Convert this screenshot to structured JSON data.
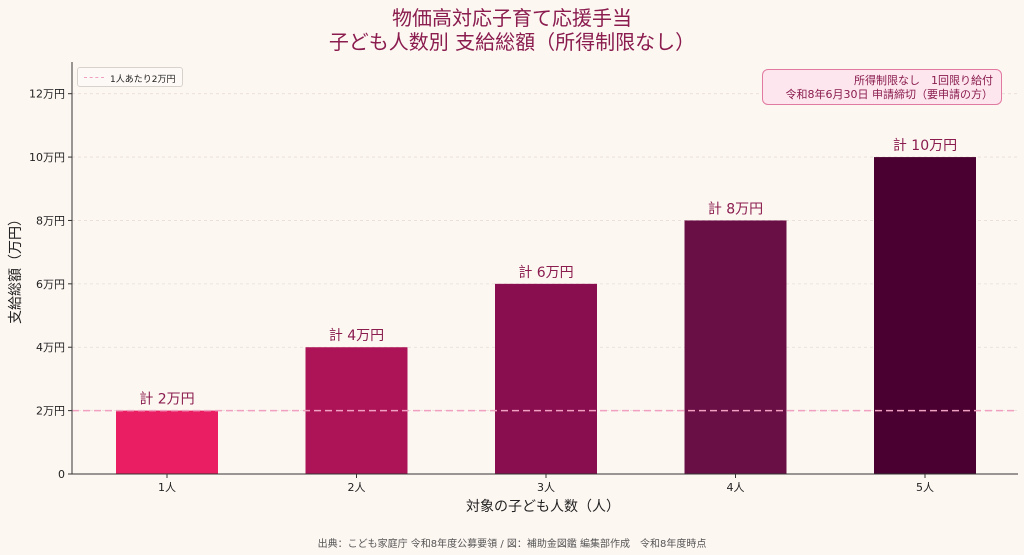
{
  "chart_data": {
    "type": "bar",
    "title": "物価高対応子育て応援手当",
    "subtitle": "子ども人数別 支給総額（所得制限なし）",
    "xlabel": "対象の子ども人数（人）",
    "ylabel": "支給総額（万円）",
    "categories": [
      "1人",
      "2人",
      "3人",
      "4人",
      "5人"
    ],
    "values": [
      2,
      4,
      6,
      8,
      10
    ],
    "data_labels": [
      "計 2万円",
      "計 4万円",
      "計 6万円",
      "計 8万円",
      "計 10万円"
    ],
    "bar_colors": [
      "#e91e63",
      "#ad1457",
      "#880e4f",
      "#6a0f45",
      "#4a0030"
    ],
    "ylim": [
      0,
      13
    ],
    "yticks": [
      0,
      2,
      4,
      6,
      8,
      10,
      12
    ],
    "ytick_labels": [
      "0",
      "2万円",
      "4万円",
      "6万円",
      "8万円",
      "10万円",
      "12万円"
    ],
    "grid": "horizontal",
    "reference_line": {
      "value": 2,
      "label": "1人あたり2万円",
      "color": "#f0a0c0",
      "style": "dashed"
    },
    "legend": {
      "position": "top-left",
      "entries": [
        "1人あたり2万円"
      ]
    },
    "annotation": {
      "position": "top-right",
      "lines": [
        "所得制限なし　1回限り給付",
        "令和8年6月30日 申請締切（要申請の方）"
      ]
    }
  },
  "footer": {
    "source": "出典：こども家庭庁 令和8年度公募要領 / 図：補助金図鑑 編集部作成　令和8年度時点"
  },
  "colors": {
    "background": "#fdf7f2",
    "title": "#8a1c4e",
    "annotation_border": "#e07aa0",
    "annotation_bg": "#fde6ee"
  }
}
